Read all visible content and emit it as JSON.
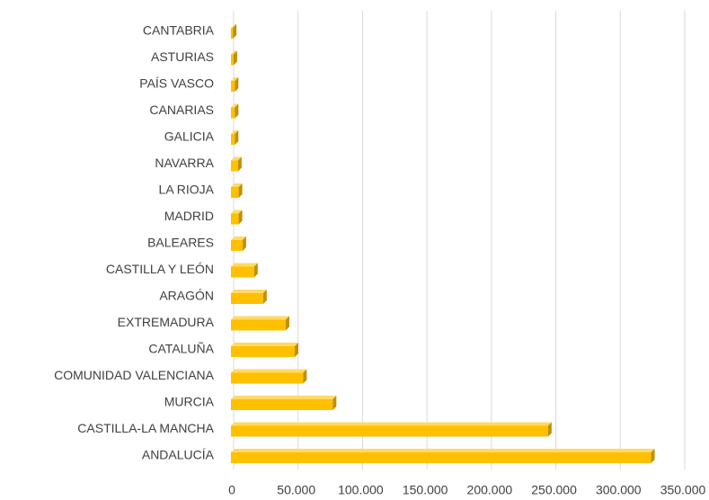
{
  "chart_data": {
    "type": "bar",
    "orientation": "horizontal",
    "categories": [
      "CANTABRIA",
      "ASTURIAS",
      "PAÍS VASCO",
      "CANARIAS",
      "GALICIA",
      "NAVARRA",
      "LA RIOJA",
      "MADRID",
      "BALEARES",
      "CASTILLA Y LEÓN",
      "ARAGÓN",
      "EXTREMADURA",
      "CATALUÑA",
      "COMUNIDAD VALENCIANA",
      "MURCIA",
      "CASTILLA-LA MANCHA",
      "ANDALUCÍA"
    ],
    "values": [
      1500,
      2000,
      3000,
      3000,
      3000,
      5500,
      6000,
      6000,
      9000,
      18000,
      25000,
      42500,
      49500,
      56000,
      79000,
      246000,
      326000
    ],
    "color": "#ffc000",
    "xlim": [
      0,
      350000
    ],
    "xticks": [
      0,
      {
        "value": 50000,
        "label": "50.000"
      },
      {
        "value": 100000,
        "label": "100.000"
      },
      {
        "value": 150000,
        "label": "150.000"
      },
      {
        "value": 200000,
        "label": "200.000"
      },
      {
        "value": 250000,
        "label": "250.000"
      },
      {
        "value": 300000,
        "label": "300.000"
      },
      {
        "value": 350000,
        "label": "350.000"
      }
    ],
    "grid": true
  }
}
